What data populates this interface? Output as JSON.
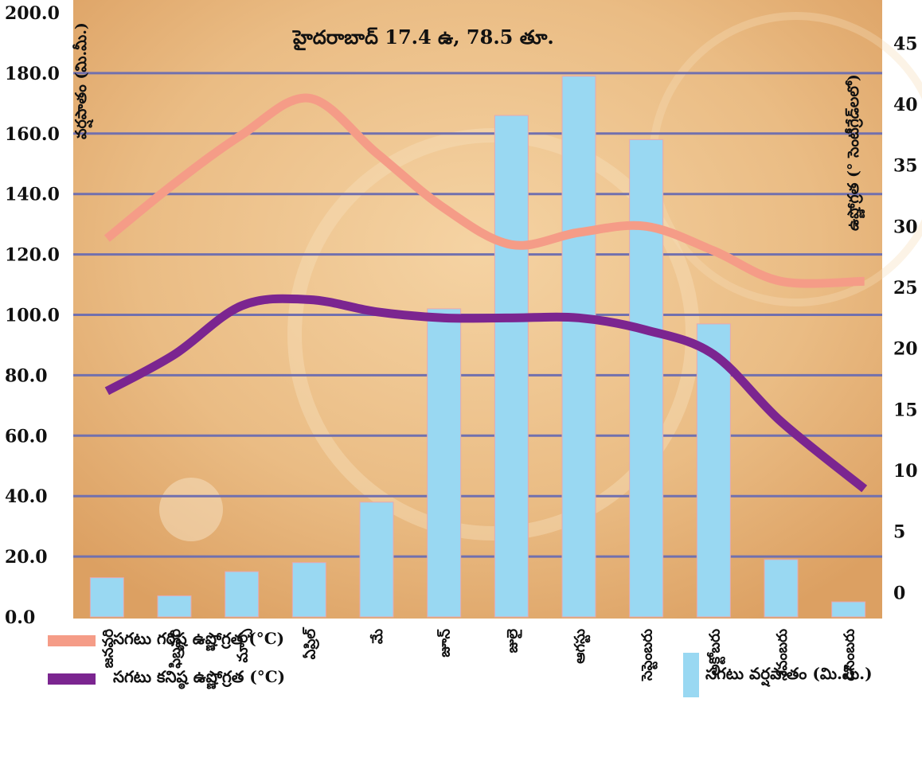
{
  "chart_data": {
    "type": "bar+line",
    "title": "హైదరాబాద్ 17.4 ఉ, 78.5 తూ.",
    "ylabel_left": "వర్షపాతం (మి.మీ.)",
    "ylabel_right": "ఉష్ణోగ్రత (° సెంటీగ్రేడ్‌లలో)",
    "ylim_left": [
      0,
      200
    ],
    "ylim_right": [
      -2,
      47.5
    ],
    "yticks_left": [
      "0.0",
      "20.0",
      "40.0",
      "60.0",
      "80.0",
      "100.0",
      "120.0",
      "140.0",
      "160.0",
      "180.0",
      "200.0"
    ],
    "yticks_right": [
      "0",
      "5",
      "10",
      "15",
      "20",
      "25",
      "30",
      "35",
      "40",
      "45"
    ],
    "grid": true,
    "categories": [
      "జనవరి",
      "ఫిబ్రవరి",
      "మార్చి",
      "ఏప్రిల్",
      "మే",
      "జూన్",
      "జులై",
      "ఆగస్టు",
      "సెప్టెంబరు",
      "అక్టోబరు",
      "నవంబరు",
      "డిసెంబరు"
    ],
    "series": [
      {
        "name": "సగటు వర్షపాతం (మి.మీ.)",
        "kind": "bar",
        "axis": "left",
        "color": "#99D8F2",
        "values": [
          13,
          7,
          15,
          18,
          38,
          102,
          166,
          179,
          158,
          97,
          19,
          5
        ]
      },
      {
        "name": "సగటు గరిష్ఠ ఉష్ణోగ్రత (°C)",
        "kind": "line",
        "axis": "right",
        "color": "#F59C87",
        "values": [
          29,
          33.5,
          37.5,
          40.5,
          36,
          31.5,
          28.5,
          29.5,
          30,
          28,
          25.5,
          25.5
        ]
      },
      {
        "name": "సగటు కనిష్ఠ ఉష్ణోగ్రత (°C)",
        "kind": "line",
        "axis": "right",
        "color": "#7B2590",
        "values": [
          16.5,
          19.5,
          23.5,
          24,
          23,
          22.5,
          22.5,
          22.5,
          21.5,
          19.5,
          14,
          8.5
        ]
      }
    ],
    "legend_placement": "bottom",
    "background_texture": "#E9B77E"
  }
}
